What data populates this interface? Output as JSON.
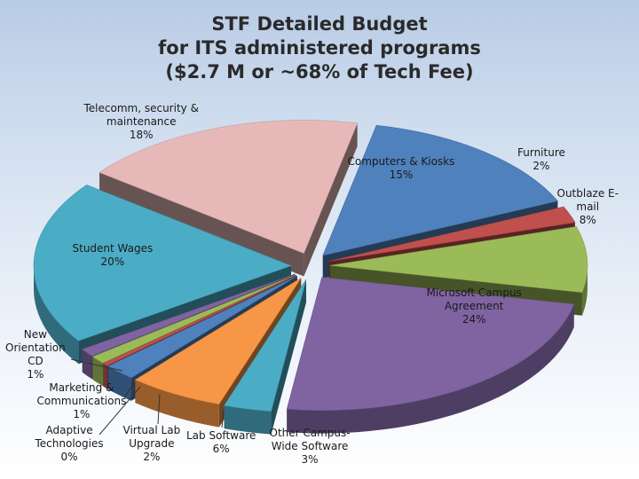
{
  "title": {
    "line1": "STF Detailed Budget",
    "line2": "for ITS administered programs",
    "line3": "($2.7 M or ~68% of Tech Fee)"
  },
  "colors": {
    "computers": "#4f81bd",
    "furniture": "#c0504d",
    "outblaze": "#9bbb59",
    "microsoft": "#8064a2",
    "other_campus": "#4bacc6",
    "lab_software": "#f79646",
    "virtual_lab": "#4f81bd",
    "adaptive": "#c0504d",
    "marketing": "#9bbb59",
    "new_orientation": "#8064a2",
    "student_wages": "#4bacc6",
    "telecomm": "#e6b9b8"
  },
  "chart_data": {
    "type": "pie",
    "variant": "3d-exploded",
    "title": "STF Detailed Budget for ITS administered programs ($2.7 M or ~68% of Tech Fee)",
    "unit": "%",
    "slices": [
      {
        "key": "computers",
        "label_lines": [
          "Computers & Kiosks"
        ],
        "value_text": "15%",
        "value": 15
      },
      {
        "key": "furniture",
        "label_lines": [
          "Furniture"
        ],
        "value_text": "2%",
        "value": 2
      },
      {
        "key": "outblaze",
        "label_lines": [
          "Outblaze E-",
          "mail"
        ],
        "value_text": "8%",
        "value": 8
      },
      {
        "key": "microsoft",
        "label_lines": [
          "Microsoft Campus",
          "Agreement"
        ],
        "value_text": "24%",
        "value": 24
      },
      {
        "key": "other_campus",
        "label_lines": [
          "Other Campus-",
          "Wide Software"
        ],
        "value_text": "3%",
        "value": 3
      },
      {
        "key": "lab_software",
        "label_lines": [
          "Lab Software"
        ],
        "value_text": "6%",
        "value": 6
      },
      {
        "key": "virtual_lab",
        "label_lines": [
          "Virtual Lab",
          "Upgrade"
        ],
        "value_text": "2%",
        "value": 2
      },
      {
        "key": "adaptive",
        "label_lines": [
          "Adaptive",
          "Technologies"
        ],
        "value_text": "0%",
        "value": 0
      },
      {
        "key": "marketing",
        "label_lines": [
          "Marketing &",
          "Communications"
        ],
        "value_text": "1%",
        "value": 1
      },
      {
        "key": "new_orientation",
        "label_lines": [
          "New",
          "Orientation",
          "CD"
        ],
        "value_text": "1%",
        "value": 1
      },
      {
        "key": "student_wages",
        "label_lines": [
          "Student Wages"
        ],
        "value_text": "20%",
        "value": 20
      },
      {
        "key": "telecomm",
        "label_lines": [
          "Telecomm, security &",
          "maintenance"
        ],
        "value_text": "18%",
        "value": 18
      }
    ]
  }
}
